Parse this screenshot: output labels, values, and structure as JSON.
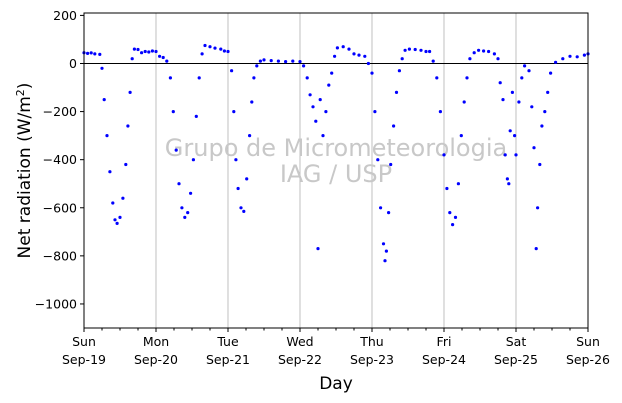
{
  "chart_data": {
    "type": "scatter",
    "xlabel": "Day",
    "ylabel": "Net radiation (W/m²)",
    "ylim": [
      -1100,
      210
    ],
    "xlim_days": [
      0,
      7
    ],
    "yticks": [
      200,
      0,
      -200,
      -400,
      -600,
      -800,
      -1000
    ],
    "ytick_labels": [
      "200",
      "0",
      "−200",
      "−400",
      "−600",
      "−800",
      "−1000"
    ],
    "xtick_labels": [
      [
        "Sun",
        "Sep-19"
      ],
      [
        "Mon",
        "Sep-20"
      ],
      [
        "Tue",
        "Sep-21"
      ],
      [
        "Wed",
        "Sep-22"
      ],
      [
        "Thu",
        "Sep-23"
      ],
      [
        "Fri",
        "Sep-24"
      ],
      [
        "Sat",
        "Sep-25"
      ],
      [
        "Sun",
        "Sep-26"
      ]
    ],
    "grid": "vertical",
    "zero_line": true,
    "watermark": [
      "Grupo de Micrometeorologia",
      "IAG / USP"
    ],
    "marker_color": "#0000ff",
    "series": [
      {
        "x_unit": "days since Sep-19 00:00",
        "points": [
          [
            0.0,
            45
          ],
          [
            0.05,
            42
          ],
          [
            0.1,
            44
          ],
          [
            0.15,
            40
          ],
          [
            0.22,
            38
          ],
          [
            0.25,
            -20
          ],
          [
            0.28,
            -150
          ],
          [
            0.32,
            -300
          ],
          [
            0.36,
            -450
          ],
          [
            0.4,
            -580
          ],
          [
            0.43,
            -650
          ],
          [
            0.46,
            -665
          ],
          [
            0.5,
            -640
          ],
          [
            0.54,
            -560
          ],
          [
            0.58,
            -420
          ],
          [
            0.61,
            -260
          ],
          [
            0.64,
            -120
          ],
          [
            0.67,
            20
          ],
          [
            0.7,
            60
          ],
          [
            0.75,
            58
          ],
          [
            0.8,
            45
          ],
          [
            0.85,
            50
          ],
          [
            0.9,
            48
          ],
          [
            0.95,
            52
          ],
          [
            1.0,
            50
          ],
          [
            1.05,
            30
          ],
          [
            1.1,
            25
          ],
          [
            1.15,
            10
          ],
          [
            1.2,
            -60
          ],
          [
            1.24,
            -200
          ],
          [
            1.28,
            -360
          ],
          [
            1.32,
            -500
          ],
          [
            1.36,
            -600
          ],
          [
            1.4,
            -640
          ],
          [
            1.44,
            -620
          ],
          [
            1.48,
            -540
          ],
          [
            1.52,
            -400
          ],
          [
            1.56,
            -220
          ],
          [
            1.6,
            -60
          ],
          [
            1.64,
            40
          ],
          [
            1.68,
            75
          ],
          [
            1.75,
            70
          ],
          [
            1.82,
            64
          ],
          [
            1.9,
            60
          ],
          [
            1.95,
            52
          ],
          [
            2.0,
            50
          ],
          [
            2.05,
            -30
          ],
          [
            2.08,
            -200
          ],
          [
            2.11,
            -400
          ],
          [
            2.14,
            -520
          ],
          [
            2.18,
            -600
          ],
          [
            2.22,
            -615
          ],
          [
            2.26,
            -480
          ],
          [
            2.3,
            -300
          ],
          [
            2.33,
            -160
          ],
          [
            2.36,
            -60
          ],
          [
            2.4,
            -10
          ],
          [
            2.45,
            10
          ],
          [
            2.5,
            15
          ],
          [
            2.6,
            12
          ],
          [
            2.7,
            10
          ],
          [
            2.8,
            8
          ],
          [
            2.9,
            10
          ],
          [
            3.0,
            8
          ],
          [
            3.05,
            -10
          ],
          [
            3.1,
            -60
          ],
          [
            3.14,
            -130
          ],
          [
            3.18,
            -180
          ],
          [
            3.22,
            -240
          ],
          [
            3.25,
            -770
          ],
          [
            3.28,
            -150
          ],
          [
            3.32,
            -300
          ],
          [
            3.36,
            -200
          ],
          [
            3.4,
            -90
          ],
          [
            3.44,
            -40
          ],
          [
            3.48,
            30
          ],
          [
            3.52,
            65
          ],
          [
            3.6,
            70
          ],
          [
            3.68,
            60
          ],
          [
            3.75,
            40
          ],
          [
            3.82,
            35
          ],
          [
            3.9,
            30
          ],
          [
            3.95,
            0
          ],
          [
            4.0,
            -40
          ],
          [
            4.04,
            -200
          ],
          [
            4.08,
            -400
          ],
          [
            4.12,
            -600
          ],
          [
            4.16,
            -750
          ],
          [
            4.18,
            -820
          ],
          [
            4.2,
            -780
          ],
          [
            4.23,
            -620
          ],
          [
            4.26,
            -420
          ],
          [
            4.3,
            -260
          ],
          [
            4.34,
            -120
          ],
          [
            4.38,
            -30
          ],
          [
            4.42,
            20
          ],
          [
            4.46,
            55
          ],
          [
            4.52,
            60
          ],
          [
            4.6,
            58
          ],
          [
            4.68,
            55
          ],
          [
            4.75,
            50
          ],
          [
            4.8,
            50
          ],
          [
            4.85,
            10
          ],
          [
            4.9,
            -60
          ],
          [
            4.95,
            -200
          ],
          [
            5.0,
            -380
          ],
          [
            5.04,
            -520
          ],
          [
            5.08,
            -620
          ],
          [
            5.12,
            -670
          ],
          [
            5.16,
            -640
          ],
          [
            5.2,
            -500
          ],
          [
            5.24,
            -300
          ],
          [
            5.28,
            -160
          ],
          [
            5.32,
            -60
          ],
          [
            5.36,
            20
          ],
          [
            5.42,
            45
          ],
          [
            5.48,
            55
          ],
          [
            5.55,
            52
          ],
          [
            5.62,
            50
          ],
          [
            5.7,
            40
          ],
          [
            5.75,
            20
          ],
          [
            5.78,
            -80
          ],
          [
            5.82,
            -150
          ],
          [
            5.85,
            -380
          ],
          [
            5.88,
            -480
          ],
          [
            5.9,
            -500
          ],
          [
            5.92,
            -280
          ],
          [
            5.95,
            -120
          ],
          [
            5.98,
            -300
          ],
          [
            6.0,
            -380
          ],
          [
            6.04,
            -160
          ],
          [
            6.08,
            -60
          ],
          [
            6.12,
            -10
          ],
          [
            6.18,
            -30
          ],
          [
            6.22,
            -180
          ],
          [
            6.25,
            -350
          ],
          [
            6.28,
            -770
          ],
          [
            6.3,
            -600
          ],
          [
            6.33,
            -420
          ],
          [
            6.36,
            -260
          ],
          [
            6.4,
            -200
          ],
          [
            6.44,
            -120
          ],
          [
            6.48,
            -40
          ],
          [
            6.55,
            5
          ],
          [
            6.65,
            20
          ],
          [
            6.75,
            30
          ],
          [
            6.85,
            28
          ],
          [
            6.95,
            35
          ],
          [
            7.0,
            40
          ]
        ]
      }
    ]
  }
}
